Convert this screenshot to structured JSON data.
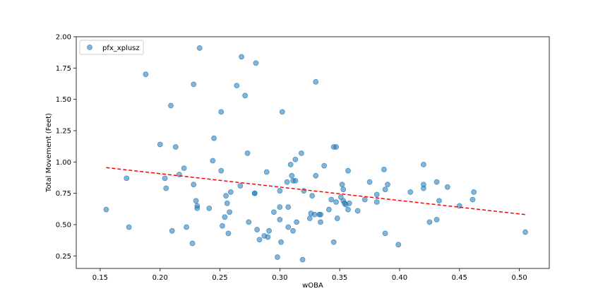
{
  "chart_data": {
    "type": "scatter",
    "title": "",
    "xlabel": "wOBA",
    "ylabel": "Total Movement (Feet)",
    "xlim": [
      0.13,
      0.525
    ],
    "ylim": [
      0.15,
      2.0
    ],
    "xticks": [
      "0.15",
      "0.20",
      "0.25",
      "0.30",
      "0.35",
      "0.40",
      "0.45",
      "0.50"
    ],
    "yticks": [
      "0.25",
      "0.50",
      "0.75",
      "1.00",
      "1.25",
      "1.50",
      "1.75",
      "2.00"
    ],
    "grid": false,
    "legend": {
      "placement": "top-left",
      "entries": [
        "pfx_xplusz"
      ]
    },
    "colors": {
      "points": "#1f77b4",
      "trend": "#ff0000"
    },
    "series": [
      {
        "name": "pfx_xplusz",
        "points": [
          [
            0.155,
            0.62
          ],
          [
            0.172,
            0.87
          ],
          [
            0.174,
            0.48
          ],
          [
            0.188,
            1.7
          ],
          [
            0.2,
            1.14
          ],
          [
            0.204,
            0.87
          ],
          [
            0.205,
            0.79
          ],
          [
            0.209,
            1.45
          ],
          [
            0.21,
            0.45
          ],
          [
            0.213,
            1.12
          ],
          [
            0.216,
            0.9
          ],
          [
            0.22,
            0.95
          ],
          [
            0.222,
            0.48
          ],
          [
            0.227,
            0.35
          ],
          [
            0.228,
            0.82
          ],
          [
            0.228,
            1.62
          ],
          [
            0.23,
            0.69
          ],
          [
            0.231,
            0.65
          ],
          [
            0.231,
            0.63
          ],
          [
            0.233,
            1.91
          ],
          [
            0.241,
            0.63
          ],
          [
            0.244,
            1.01
          ],
          [
            0.245,
            1.19
          ],
          [
            0.251,
            1.4
          ],
          [
            0.251,
            0.93
          ],
          [
            0.252,
            0.49
          ],
          [
            0.254,
            0.56
          ],
          [
            0.255,
            0.73
          ],
          [
            0.256,
            0.67
          ],
          [
            0.257,
            0.43
          ],
          [
            0.258,
            0.6
          ],
          [
            0.259,
            0.76
          ],
          [
            0.264,
            1.61
          ],
          [
            0.267,
            0.81
          ],
          [
            0.268,
            1.84
          ],
          [
            0.271,
            1.53
          ],
          [
            0.273,
            1.07
          ],
          [
            0.274,
            0.52
          ],
          [
            0.279,
            0.75
          ],
          [
            0.279,
            0.75
          ],
          [
            0.28,
            1.79
          ],
          [
            0.281,
            0.46
          ],
          [
            0.283,
            0.38
          ],
          [
            0.287,
            0.41
          ],
          [
            0.289,
            0.92
          ],
          [
            0.29,
            0.4
          ],
          [
            0.291,
            0.45
          ],
          [
            0.295,
            0.6
          ],
          [
            0.298,
            0.24
          ],
          [
            0.3,
            0.64
          ],
          [
            0.3,
            0.54
          ],
          [
            0.3,
            0.77
          ],
          [
            0.301,
            0.36
          ],
          [
            0.302,
            1.4
          ],
          [
            0.306,
            0.84
          ],
          [
            0.307,
            0.48
          ],
          [
            0.307,
            0.64
          ],
          [
            0.309,
            0.98
          ],
          [
            0.31,
            0.89
          ],
          [
            0.311,
            0.85
          ],
          [
            0.311,
            0.45
          ],
          [
            0.313,
            1.02
          ],
          [
            0.313,
            0.85
          ],
          [
            0.314,
            0.52
          ],
          [
            0.318,
            1.07
          ],
          [
            0.319,
            0.22
          ],
          [
            0.32,
            0.77
          ],
          [
            0.325,
            0.55
          ],
          [
            0.326,
            0.59
          ],
          [
            0.327,
            0.73
          ],
          [
            0.329,
            0.58
          ],
          [
            0.33,
            1.64
          ],
          [
            0.33,
            0.89
          ],
          [
            0.333,
            0.58
          ],
          [
            0.334,
            0.58
          ],
          [
            0.334,
            0.52
          ],
          [
            0.337,
            0.97
          ],
          [
            0.341,
            0.62
          ],
          [
            0.343,
            0.7
          ],
          [
            0.345,
            0.36
          ],
          [
            0.345,
            1.12
          ],
          [
            0.347,
            1.12
          ],
          [
            0.347,
            0.68
          ],
          [
            0.348,
            0.55
          ],
          [
            0.351,
            0.72
          ],
          [
            0.352,
            0.82
          ],
          [
            0.353,
            0.69
          ],
          [
            0.353,
            0.78
          ],
          [
            0.354,
            0.67
          ],
          [
            0.355,
            0.66
          ],
          [
            0.357,
            0.93
          ],
          [
            0.357,
            0.62
          ],
          [
            0.358,
            0.67
          ],
          [
            0.365,
            0.61
          ],
          [
            0.371,
            0.7
          ],
          [
            0.375,
            0.84
          ],
          [
            0.381,
            0.74
          ],
          [
            0.381,
            0.68
          ],
          [
            0.387,
            0.94
          ],
          [
            0.388,
            0.78
          ],
          [
            0.388,
            0.43
          ],
          [
            0.39,
            0.82
          ],
          [
            0.399,
            0.34
          ],
          [
            0.409,
            0.76
          ],
          [
            0.42,
            0.98
          ],
          [
            0.42,
            0.79
          ],
          [
            0.42,
            0.82
          ],
          [
            0.425,
            0.52
          ],
          [
            0.431,
            0.84
          ],
          [
            0.431,
            0.54
          ],
          [
            0.433,
            0.69
          ],
          [
            0.44,
            0.8
          ],
          [
            0.45,
            0.65
          ],
          [
            0.461,
            0.7
          ],
          [
            0.462,
            0.76
          ],
          [
            0.505,
            0.44
          ]
        ]
      }
    ],
    "trendline": {
      "style": "dashed",
      "x": [
        0.155,
        0.505
      ],
      "y": [
        0.955,
        0.58
      ]
    }
  }
}
